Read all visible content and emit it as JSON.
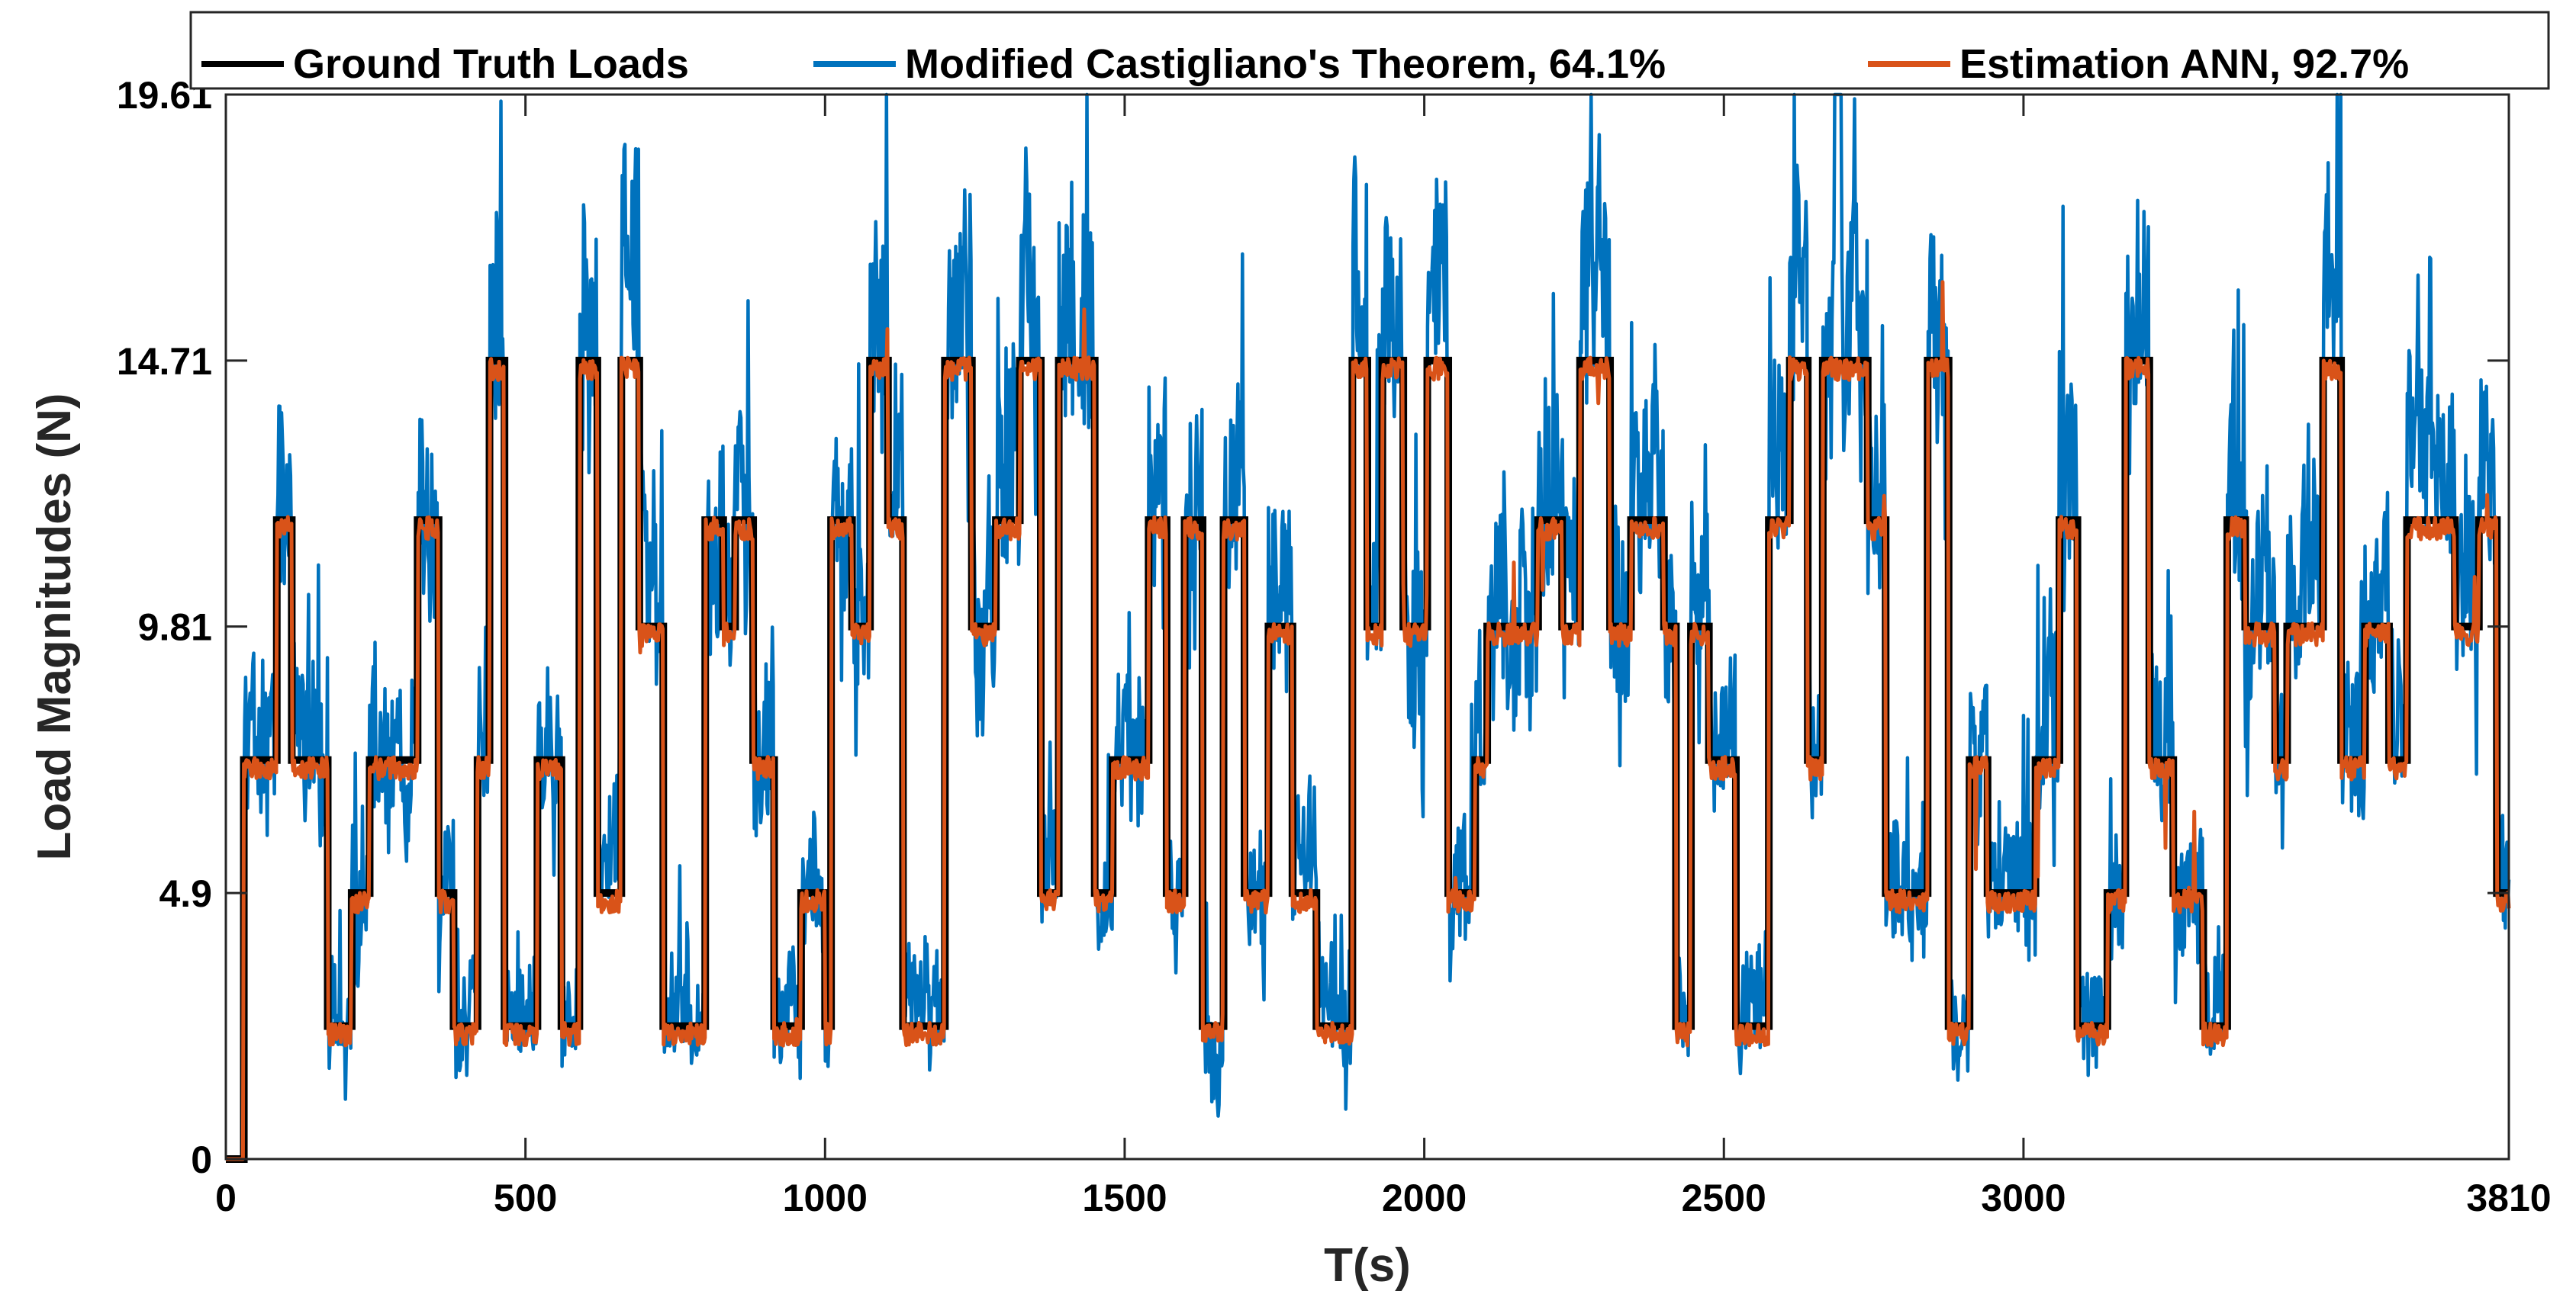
{
  "chart_data": {
    "type": "line",
    "title": "",
    "xlabel": "T(s)",
    "ylabel": "Load Magnitudes (N)",
    "xlim": [
      0,
      3810
    ],
    "ylim": [
      0,
      19.61
    ],
    "xticks": [
      0,
      500,
      1000,
      1500,
      2000,
      2500,
      3000,
      3810
    ],
    "xtick_labels": [
      "0",
      "500",
      "1000",
      "1500",
      "2000",
      "2500",
      "3000",
      "3810"
    ],
    "yticks": [
      0,
      4.9,
      9.81,
      14.71,
      19.61
    ],
    "ytick_labels": [
      "0",
      "4.9",
      "9.81",
      "14.71",
      "19.61"
    ],
    "legend_position": "top",
    "series": [
      {
        "name": "Ground Truth Loads",
        "color": "#000000",
        "kind": "step",
        "steps": [
          [
            0,
            0
          ],
          [
            30,
            7.35
          ],
          [
            85,
            11.77
          ],
          [
            110,
            7.35
          ],
          [
            170,
            2.45
          ],
          [
            210,
            4.9
          ],
          [
            240,
            7.35
          ],
          [
            320,
            11.77
          ],
          [
            355,
            4.9
          ],
          [
            380,
            2.45
          ],
          [
            420,
            7.35
          ],
          [
            440,
            14.71
          ],
          [
            465,
            2.45
          ],
          [
            520,
            7.35
          ],
          [
            560,
            2.45
          ],
          [
            590,
            14.71
          ],
          [
            620,
            4.9
          ],
          [
            660,
            14.71
          ],
          [
            690,
            9.81
          ],
          [
            730,
            2.45
          ],
          [
            800,
            11.77
          ],
          [
            830,
            9.81
          ],
          [
            850,
            11.77
          ],
          [
            880,
            7.35
          ],
          [
            915,
            2.45
          ],
          [
            960,
            4.9
          ],
          [
            1000,
            2.45
          ],
          [
            1010,
            11.77
          ],
          [
            1045,
            9.81
          ],
          [
            1075,
            14.71
          ],
          [
            1105,
            11.77
          ],
          [
            1130,
            2.45
          ],
          [
            1200,
            14.71
          ],
          [
            1245,
            9.81
          ],
          [
            1285,
            11.77
          ],
          [
            1325,
            14.71
          ],
          [
            1360,
            4.9
          ],
          [
            1390,
            14.71
          ],
          [
            1450,
            4.9
          ],
          [
            1480,
            7.35
          ],
          [
            1540,
            11.77
          ],
          [
            1570,
            4.9
          ],
          [
            1600,
            11.77
          ],
          [
            1630,
            2.45
          ],
          [
            1665,
            11.77
          ],
          [
            1700,
            4.9
          ],
          [
            1740,
            9.81
          ],
          [
            1780,
            4.9
          ],
          [
            1820,
            2.45
          ],
          [
            1880,
            14.71
          ],
          [
            1905,
            9.81
          ],
          [
            1930,
            14.71
          ],
          [
            1965,
            9.81
          ],
          [
            2005,
            14.71
          ],
          [
            2040,
            4.9
          ],
          [
            2085,
            7.35
          ],
          [
            2105,
            9.81
          ],
          [
            2170,
            9.81
          ],
          [
            2190,
            11.77
          ],
          [
            2230,
            9.81
          ],
          [
            2260,
            14.71
          ],
          [
            2310,
            9.81
          ],
          [
            2345,
            11.77
          ],
          [
            2400,
            9.81
          ],
          [
            2420,
            2.45
          ],
          [
            2445,
            9.81
          ],
          [
            2475,
            7.35
          ],
          [
            2520,
            2.45
          ],
          [
            2575,
            11.77
          ],
          [
            2610,
            14.71
          ],
          [
            2640,
            7.35
          ],
          [
            2665,
            14.71
          ],
          [
            2740,
            11.77
          ],
          [
            2770,
            4.9
          ],
          [
            2840,
            14.71
          ],
          [
            2875,
            2.45
          ],
          [
            2910,
            7.35
          ],
          [
            2940,
            4.9
          ],
          [
            3000,
            4.9
          ],
          [
            3020,
            7.35
          ],
          [
            3060,
            11.77
          ],
          [
            3090,
            2.45
          ],
          [
            3140,
            4.9
          ],
          [
            3170,
            14.71
          ],
          [
            3210,
            7.35
          ],
          [
            3250,
            4.9
          ],
          [
            3300,
            2.45
          ],
          [
            3340,
            11.77
          ],
          [
            3370,
            9.81
          ],
          [
            3420,
            7.35
          ],
          [
            3440,
            9.81
          ],
          [
            3500,
            14.71
          ],
          [
            3530,
            7.35
          ],
          [
            3570,
            9.81
          ],
          [
            3610,
            7.35
          ],
          [
            3640,
            11.77
          ],
          [
            3690,
            11.77
          ],
          [
            3720,
            9.81
          ],
          [
            3760,
            11.77
          ],
          [
            3790,
            4.9
          ],
          [
            3810,
            4.9
          ]
        ]
      },
      {
        "name": "Modified Castigliano's Theorem, 64.1%",
        "color": "#0072BD",
        "kind": "noisy",
        "noise_amplitude": 2.6,
        "peak": 19.61,
        "trough": 0.6
      },
      {
        "name": "Estimation ANN, 92.7%",
        "color": "#D95319",
        "kind": "noisy",
        "noise_amplitude": 0.7
      }
    ]
  }
}
